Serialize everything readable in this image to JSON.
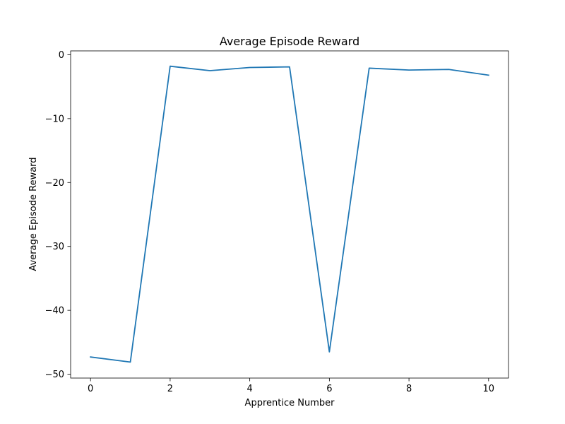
{
  "chart_data": {
    "type": "line",
    "title": "Average Episode Reward",
    "xlabel": "Apprentice Number",
    "ylabel": "Average Episode Reward",
    "x": [
      0,
      1,
      2,
      3,
      4,
      5,
      6,
      7,
      8,
      9,
      10
    ],
    "series": [
      {
        "values": [
          -47.3,
          -48.1,
          -1.8,
          -2.5,
          -2.0,
          -1.9,
          -46.5,
          -2.1,
          -2.4,
          -2.3,
          -3.2
        ],
        "color": "#1f77b4"
      }
    ],
    "xlim": [
      -0.5,
      10.5
    ],
    "ylim": [
      -50.6,
      0.6
    ],
    "xticks": [
      0,
      2,
      4,
      6,
      8,
      10
    ],
    "xtick_labels": [
      "0",
      "2",
      "4",
      "6",
      "8",
      "10"
    ],
    "yticks": [
      0,
      -10,
      -20,
      -30,
      -40,
      -50
    ],
    "ytick_labels": [
      "0",
      "−10",
      "−20",
      "−30",
      "−40",
      "−50"
    ],
    "grid": false,
    "legend": "none"
  }
}
